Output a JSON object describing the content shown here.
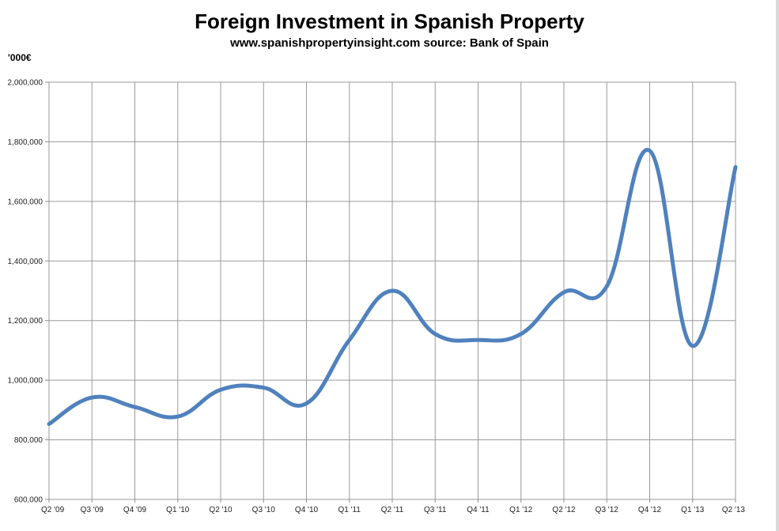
{
  "chart_data": {
    "type": "line",
    "title": "Foreign Investment in Spanish Property",
    "subtitle": "www.spanishpropertyinsight.com source: Bank of Spain",
    "unit_label": "'000€",
    "xlabel": "",
    "ylabel": "",
    "categories": [
      "Q2 '09",
      "Q3 '09",
      "Q4 '09",
      "Q1 '10",
      "Q2 '10",
      "Q3 '10",
      "Q4 '10",
      "Q1 '11",
      "Q2 '11",
      "Q3 '11",
      "Q4 '11",
      "Q1 '12",
      "Q2 '12",
      "Q3 '12",
      "Q4 '12",
      "Q1 '13",
      "Q2 '13"
    ],
    "y_ticks": [
      "600,000",
      "800,000",
      "1,000,000",
      "1,200,000",
      "1,400,000",
      "1,600,000",
      "1,800,000",
      "2,000,000"
    ],
    "ylim": [
      600000,
      2000000
    ],
    "y_tick_values": [
      600000,
      800000,
      1000000,
      1200000,
      1400000,
      1600000,
      1800000,
      2000000
    ],
    "series": [
      {
        "values": [
          853000,
          942000,
          910000,
          878000,
          968000,
          975000,
          922000,
          1135000,
          1300000,
          1155000,
          1135000,
          1155000,
          1295000,
          1315000,
          1770000,
          1115000,
          1715000
        ]
      }
    ],
    "grid": true,
    "legend": "none",
    "line_color": "#4f81bd"
  }
}
